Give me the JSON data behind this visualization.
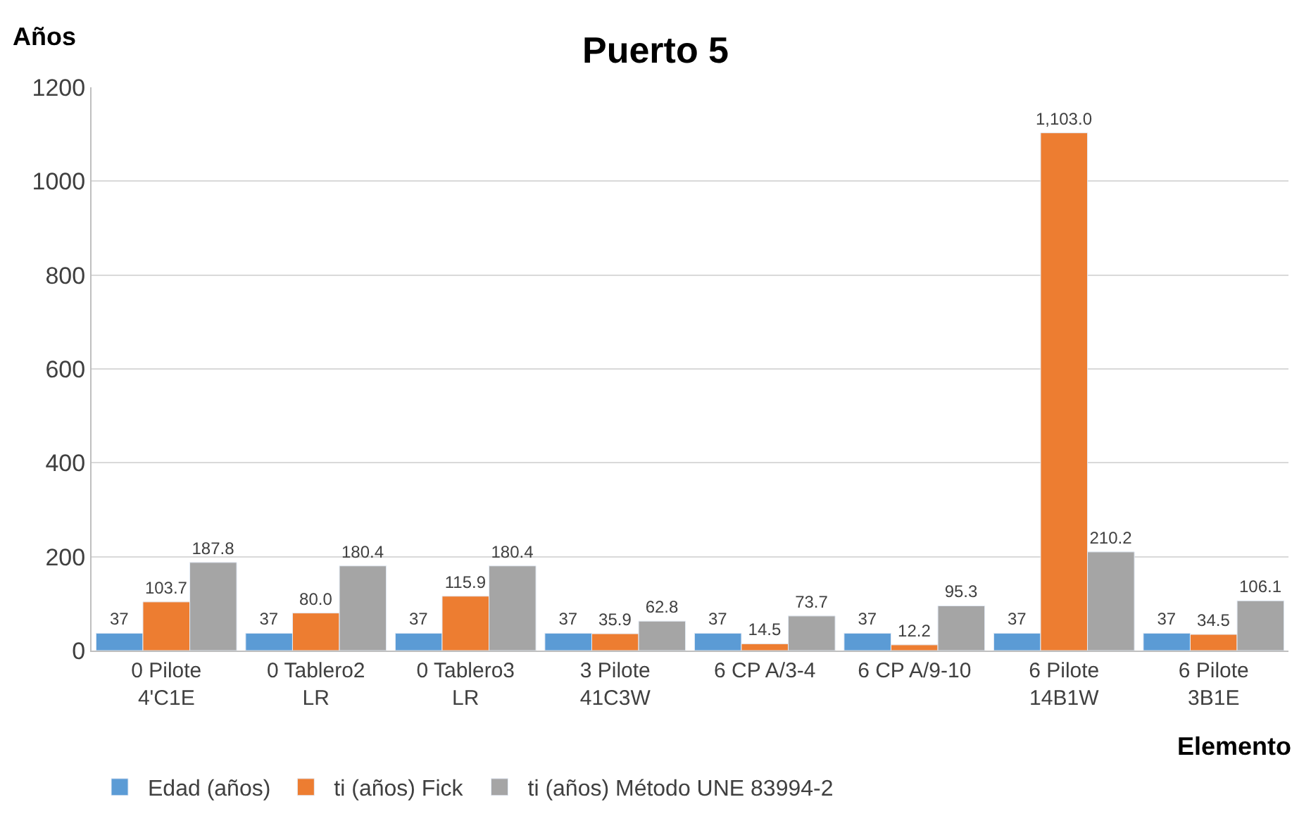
{
  "chart_data": {
    "type": "bar",
    "title": "Puerto 5",
    "ylabel": "Años",
    "xlabel": "Elemento",
    "categories": [
      "0 Pilote\n4'C1E",
      "0 Tablero2\nLR",
      "0 Tablero3\nLR",
      "3 Pilote\n41C3W",
      "6 CP A/3-4",
      "6 CP A/9-10",
      "6 Pilote\n14B1W",
      "6 Pilote\n3B1E"
    ],
    "series": [
      {
        "name": "Edad (años)",
        "color": "#5b9bd5",
        "values": [
          37,
          37,
          37,
          37,
          37,
          37,
          37,
          37
        ],
        "value_labels": [
          "37",
          "37",
          "37",
          "37",
          "37",
          "37",
          "37",
          "37"
        ]
      },
      {
        "name": "ti (años) Fick",
        "color": "#ed7d31",
        "values": [
          103.7,
          80.0,
          115.9,
          35.9,
          14.5,
          12.2,
          1103.0,
          34.5
        ],
        "value_labels": [
          "103.7",
          "80.0",
          "115.9",
          "35.9",
          "14.5",
          "12.2",
          "1,103.0",
          "34.5"
        ]
      },
      {
        "name": "ti (años) Método UNE 83994-2",
        "color": "#a5a5a5",
        "values": [
          187.8,
          180.4,
          180.4,
          62.8,
          73.7,
          95.3,
          210.2,
          106.1
        ],
        "value_labels": [
          "187.8",
          "180.4",
          "180.4",
          "62.8",
          "73.7",
          "95.3",
          "210.2",
          "106.1"
        ]
      }
    ],
    "ylim": [
      0,
      1200
    ],
    "yticks": [
      0,
      200,
      400,
      600,
      800,
      1000,
      1200
    ],
    "grid": "y",
    "legend": "bottom"
  }
}
